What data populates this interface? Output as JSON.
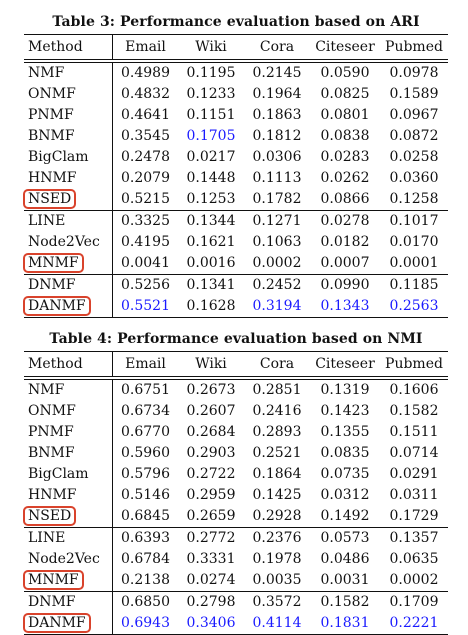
{
  "columns": [
    "Method",
    "Email",
    "Wiki",
    "Cora",
    "Citeseer",
    "Pubmed"
  ],
  "tables": [
    {
      "caption": "Table 3: Performance evaluation based on ARI",
      "groups": [
        [
          {
            "method": "NMF",
            "values": [
              "0.4989",
              "0.1195",
              "0.2145",
              "0.0590",
              "0.0978"
            ]
          },
          {
            "method": "ONMF",
            "values": [
              "0.4832",
              "0.1233",
              "0.1964",
              "0.0825",
              "0.1589"
            ]
          },
          {
            "method": "PNMF",
            "values": [
              "0.4641",
              "0.1151",
              "0.1863",
              "0.0801",
              "0.0967"
            ]
          },
          {
            "method": "BNMF",
            "values": [
              "0.3545",
              "0.1705",
              "0.1812",
              "0.0838",
              "0.0872"
            ]
          },
          {
            "method": "BigClam",
            "values": [
              "0.2478",
              "0.0217",
              "0.0306",
              "0.0283",
              "0.0258"
            ]
          },
          {
            "method": "HNMF",
            "values": [
              "0.2079",
              "0.1448",
              "0.1113",
              "0.0262",
              "0.0360"
            ]
          },
          {
            "method": "NSED",
            "values": [
              "0.5215",
              "0.1253",
              "0.1782",
              "0.0866",
              "0.1258"
            ]
          }
        ],
        [
          {
            "method": "LINE",
            "values": [
              "0.3325",
              "0.1344",
              "0.1271",
              "0.0278",
              "0.1017"
            ]
          },
          {
            "method": "Node2Vec",
            "values": [
              "0.4195",
              "0.1621",
              "0.1063",
              "0.0182",
              "0.0170"
            ]
          },
          {
            "method": "MNMF",
            "values": [
              "0.0041",
              "0.0016",
              "0.0002",
              "0.0007",
              "0.0001"
            ]
          }
        ],
        [
          {
            "method": "DNMF",
            "values": [
              "0.5256",
              "0.1341",
              "0.2452",
              "0.0990",
              "0.1185"
            ]
          },
          {
            "method": "DANMF",
            "values": [
              "0.5521",
              "0.1628",
              "0.3194",
              "0.1343",
              "0.2563"
            ]
          }
        ]
      ],
      "blue_cells": [
        [
          0,
          3,
          1
        ],
        [
          2,
          1,
          0
        ],
        [
          2,
          1,
          2
        ],
        [
          2,
          1,
          3
        ],
        [
          2,
          1,
          4
        ]
      ]
    },
    {
      "caption": "Table 4: Performance evaluation based on NMI",
      "groups": [
        [
          {
            "method": "NMF",
            "values": [
              "0.6751",
              "0.2673",
              "0.2851",
              "0.1319",
              "0.1606"
            ]
          },
          {
            "method": "ONMF",
            "values": [
              "0.6734",
              "0.2607",
              "0.2416",
              "0.1423",
              "0.1582"
            ]
          },
          {
            "method": "PNMF",
            "values": [
              "0.6770",
              "0.2684",
              "0.2893",
              "0.1355",
              "0.1511"
            ]
          },
          {
            "method": "BNMF",
            "values": [
              "0.5960",
              "0.2903",
              "0.2521",
              "0.0835",
              "0.0714"
            ]
          },
          {
            "method": "BigClam",
            "values": [
              "0.5796",
              "0.2722",
              "0.1864",
              "0.0735",
              "0.0291"
            ]
          },
          {
            "method": "HNMF",
            "values": [
              "0.5146",
              "0.2959",
              "0.1425",
              "0.0312",
              "0.0311"
            ]
          },
          {
            "method": "NSED",
            "values": [
              "0.6845",
              "0.2659",
              "0.2928",
              "0.1492",
              "0.1729"
            ]
          }
        ],
        [
          {
            "method": "LINE",
            "values": [
              "0.6393",
              "0.2772",
              "0.2376",
              "0.0573",
              "0.1357"
            ]
          },
          {
            "method": "Node2Vec",
            "values": [
              "0.6784",
              "0.3331",
              "0.1978",
              "0.0486",
              "0.0635"
            ]
          },
          {
            "method": "MNMF",
            "values": [
              "0.2138",
              "0.0274",
              "0.0035",
              "0.0031",
              "0.0002"
            ]
          }
        ],
        [
          {
            "method": "DNMF",
            "values": [
              "0.6850",
              "0.2798",
              "0.3572",
              "0.1582",
              "0.1709"
            ]
          },
          {
            "method": "DANMF",
            "values": [
              "0.6943",
              "0.3406",
              "0.4114",
              "0.1831",
              "0.2221"
            ]
          }
        ]
      ],
      "blue_cells": [
        [
          2,
          1,
          0
        ],
        [
          2,
          1,
          1
        ],
        [
          2,
          1,
          2
        ],
        [
          2,
          1,
          3
        ],
        [
          2,
          1,
          4
        ]
      ]
    }
  ],
  "highlighted_methods": [
    "NSED",
    "MNMF",
    "DANMF"
  ],
  "colors": {
    "best_value": "#1a1aff",
    "highlight_border": "#d9432c"
  }
}
